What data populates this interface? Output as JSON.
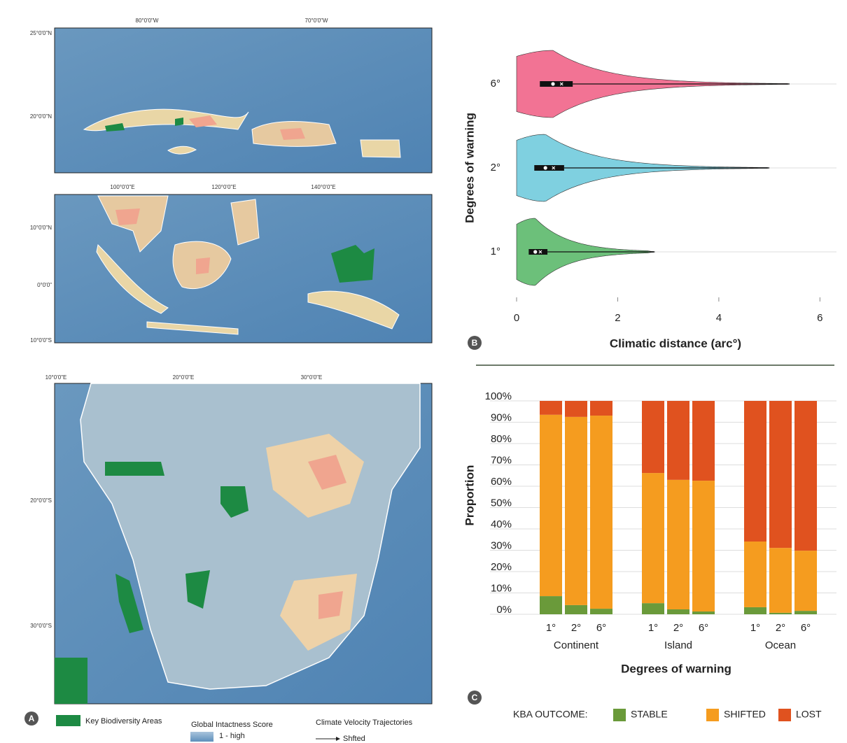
{
  "maps": [
    {
      "top_labels": [
        "80°0'0\"W",
        "70°0'0\"W"
      ],
      "left_labels": [
        "25°0'0\"N",
        "20°0'0\"N"
      ]
    },
    {
      "top_labels": [
        "100°0'0\"E",
        "120°0'0\"E",
        "140°0'0\"E"
      ],
      "left_labels": [
        "10°0'0\"N",
        "0°0'0\"",
        "10°0'0\"S"
      ]
    },
    {
      "top_labels": [
        "10°0'0\"E",
        "20°0'0\"E",
        "30°0'0\"E"
      ],
      "left_labels": [
        "20°0'0\"S",
        "30°0'0\"S"
      ]
    }
  ],
  "map_legend": {
    "kba": "Key Biodiversity Areas",
    "intactness_title": "Global Intactness Score",
    "intactness_high": "1 - high",
    "velocity_title": "Climate Velocity Trajectories",
    "velocity_shifted": "Shfted"
  },
  "panel_labels": [
    "A",
    "B",
    "C"
  ],
  "chart_data": [
    {
      "type": "violin",
      "xlabel": "Climatic distance (arc°)",
      "ylabel": "Degrees of warning",
      "categories": [
        "1°",
        "2°",
        "6°"
      ],
      "violins": [
        {
          "color": "#6cc07a",
          "q1": 0.24,
          "median": 0.37,
          "mean": 0.47,
          "q3": 0.61,
          "max": 2.73
        },
        {
          "color": "#7fd0e0",
          "q1": 0.35,
          "median": 0.57,
          "mean": 0.73,
          "q3": 0.94,
          "max": 5.0
        },
        {
          "color": "#f27394",
          "q1": 0.46,
          "median": 0.72,
          "mean": 0.89,
          "q3": 1.11,
          "max": 5.4
        }
      ],
      "xlim": [
        0,
        6.3
      ],
      "xticks": [
        0,
        2,
        4,
        6
      ],
      "grid": true
    },
    {
      "type": "stacked_bar",
      "xlabel": "Degrees of warning",
      "ylabel": "Proportion",
      "categories": [
        "1°",
        "2°",
        "6°",
        "1°",
        "2°",
        "6°",
        "1°",
        "2°",
        "6°"
      ],
      "groups": [
        "Continent",
        "Island",
        "Ocean"
      ],
      "series": [
        {
          "name": "STABLE",
          "color": "#6a9a3a",
          "values": [
            8.5,
            4.3,
            2.6,
            5.2,
            2.3,
            1.3,
            3.3,
            0.7,
            1.6
          ]
        },
        {
          "name": "SHIFTED",
          "color": "#f59c1f",
          "values": [
            85.0,
            88.2,
            90.5,
            61.0,
            60.7,
            61.3,
            30.8,
            30.4,
            28.2
          ]
        },
        {
          "name": "LOST",
          "color": "#e0521f",
          "values": [
            6.5,
            7.5,
            6.9,
            33.8,
            37.0,
            37.4,
            65.9,
            68.9,
            70.2
          ]
        }
      ],
      "legend_title": "KBA OUTCOME:",
      "ylim": [
        0,
        100
      ],
      "yticks": [
        {
          "value": 0,
          "label": "0%"
        },
        {
          "value": 10,
          "label": "10%"
        },
        {
          "value": 20,
          "label": "20%"
        },
        {
          "value": 30,
          "label": "30%"
        },
        {
          "value": 40,
          "label": "40%"
        },
        {
          "value": 50,
          "label": "50%"
        },
        {
          "value": 60,
          "label": "60%"
        },
        {
          "value": 70,
          "label": "70%"
        },
        {
          "value": 80,
          "label": "80%"
        },
        {
          "value": 90,
          "label": "90%"
        },
        {
          "value": 100,
          "label": "100%"
        }
      ],
      "grid": true,
      "legend": "bottom"
    }
  ]
}
